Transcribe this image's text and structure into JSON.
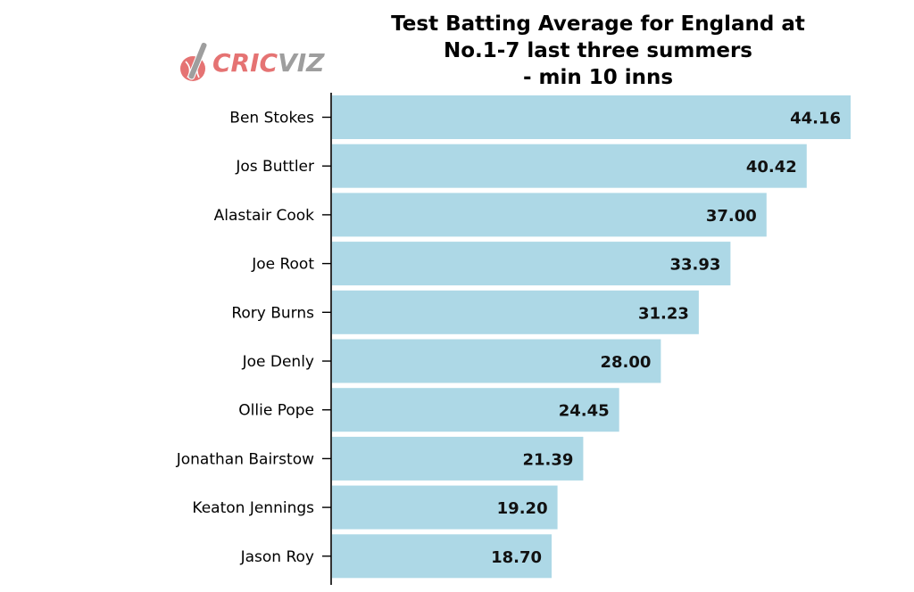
{
  "logo": {
    "text_a": "CRIC",
    "text_b": "VIZ",
    "color_a": "#e57373",
    "color_b": "#9e9e9e",
    "icon": "cricket-bat-ball-icon"
  },
  "chart_data": {
    "type": "bar",
    "orientation": "horizontal",
    "title": "Test Batting Average for England at\nNo.1-7 last three summers\n- min 10 inns",
    "categories": [
      "Ben Stokes",
      "Jos Buttler",
      "Alastair Cook",
      "Joe Root",
      "Rory Burns",
      "Joe Denly",
      "Ollie Pope",
      "Jonathan Bairstow",
      "Keaton Jennings",
      "Jason Roy"
    ],
    "values": [
      44.16,
      40.42,
      37.0,
      33.93,
      31.23,
      28.0,
      24.45,
      21.39,
      19.2,
      18.7
    ],
    "value_labels": [
      "44.16",
      "40.42",
      "37.00",
      "33.93",
      "31.23",
      "28.00",
      "24.45",
      "21.39",
      "19.20",
      "18.70"
    ],
    "xlim": [
      0,
      44.16
    ],
    "xlabel": "",
    "ylabel": "",
    "grid": false,
    "bar_color": "#add8e6"
  }
}
